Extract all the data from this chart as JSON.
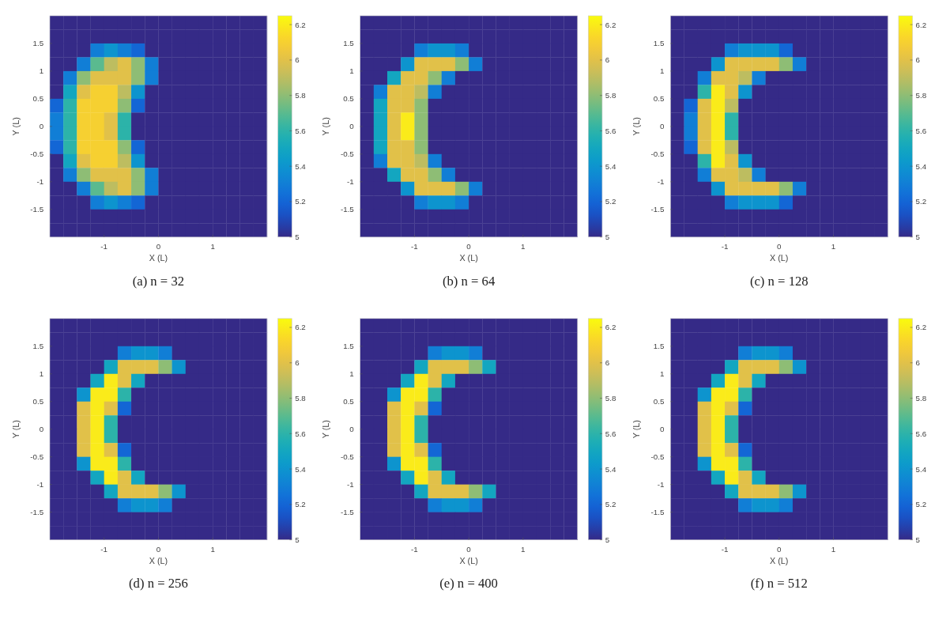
{
  "chart_data": [
    {
      "type": "heatmap",
      "title": "(a) n = 32",
      "xlabel": "X (L)",
      "ylabel": "Y (L)",
      "xlim": [
        -2,
        2
      ],
      "xticks": [
        -1,
        0,
        1
      ],
      "ylim": [
        -2,
        2
      ],
      "yticks": [
        -1.5,
        -1,
        -0.5,
        0,
        0.5,
        1,
        1.5
      ],
      "clim": [
        5,
        6.25
      ],
      "cticks": [
        5,
        5.2,
        5.4,
        5.6,
        5.8,
        6,
        6.2
      ],
      "cells": [
        [
          5,
          5,
          5,
          5,
          5,
          5,
          5,
          5,
          5,
          5,
          5,
          5,
          5,
          5,
          5,
          5
        ],
        [
          5,
          5,
          5,
          5,
          5,
          5,
          5,
          5,
          5,
          5,
          5,
          5,
          5,
          5,
          5,
          5
        ],
        [
          5,
          5,
          5,
          5.3,
          5.4,
          5.3,
          5.2,
          5,
          5,
          5,
          5,
          5,
          5,
          5,
          5,
          5
        ],
        [
          5,
          5,
          5.3,
          5.7,
          5.9,
          6,
          5.8,
          5.3,
          5,
          5,
          5,
          5,
          5,
          5,
          5,
          5
        ],
        [
          5,
          5.3,
          5.8,
          6,
          6,
          6,
          5.8,
          5.3,
          5,
          5,
          5,
          5,
          5,
          5,
          5,
          5
        ],
        [
          5,
          5.5,
          6,
          6.1,
          6.1,
          5.9,
          5.4,
          5,
          5,
          5,
          5,
          5,
          5,
          5,
          5,
          5
        ],
        [
          5.2,
          5.6,
          6.1,
          6.1,
          6.1,
          5.8,
          5.2,
          5,
          5,
          5,
          5,
          5,
          5,
          5,
          5,
          5
        ],
        [
          5.3,
          5.6,
          6.1,
          6.1,
          6,
          5.6,
          5,
          5,
          5,
          5,
          5,
          5,
          5,
          5,
          5,
          5
        ],
        [
          5.3,
          5.6,
          6.1,
          6.1,
          6,
          5.6,
          5,
          5,
          5,
          5,
          5,
          5,
          5,
          5,
          5,
          5
        ],
        [
          5.2,
          5.6,
          6.1,
          6.1,
          6.1,
          5.8,
          5.2,
          5,
          5,
          5,
          5,
          5,
          5,
          5,
          5,
          5
        ],
        [
          5,
          5.5,
          6,
          6.1,
          6.1,
          5.9,
          5.4,
          5,
          5,
          5,
          5,
          5,
          5,
          5,
          5,
          5
        ],
        [
          5,
          5.3,
          5.8,
          6,
          6,
          6,
          5.8,
          5.3,
          5,
          5,
          5,
          5,
          5,
          5,
          5,
          5
        ],
        [
          5,
          5,
          5.3,
          5.7,
          5.9,
          6,
          5.8,
          5.3,
          5,
          5,
          5,
          5,
          5,
          5,
          5,
          5
        ],
        [
          5,
          5,
          5,
          5.3,
          5.4,
          5.3,
          5.2,
          5,
          5,
          5,
          5,
          5,
          5,
          5,
          5,
          5
        ],
        [
          5,
          5,
          5,
          5,
          5,
          5,
          5,
          5,
          5,
          5,
          5,
          5,
          5,
          5,
          5,
          5
        ],
        [
          5,
          5,
          5,
          5,
          5,
          5,
          5,
          5,
          5,
          5,
          5,
          5,
          5,
          5,
          5,
          5
        ]
      ]
    },
    {
      "type": "heatmap",
      "title": "(b) n = 64",
      "xlabel": "X (L)",
      "ylabel": "Y (L)",
      "xlim": [
        -2,
        2
      ],
      "xticks": [
        -1,
        0,
        1
      ],
      "ylim": [
        -2,
        2
      ],
      "yticks": [
        -1.5,
        -1,
        -0.5,
        0,
        0.5,
        1,
        1.5
      ],
      "clim": [
        5,
        6.25
      ],
      "cticks": [
        5,
        5.2,
        5.4,
        5.6,
        5.8,
        6,
        6.2
      ],
      "cells": [
        [
          5,
          5,
          5,
          5,
          5,
          5,
          5,
          5,
          5,
          5,
          5,
          5,
          5,
          5,
          5,
          5
        ],
        [
          5,
          5,
          5,
          5,
          5,
          5,
          5,
          5,
          5,
          5,
          5,
          5,
          5,
          5,
          5,
          5
        ],
        [
          5,
          5,
          5,
          5,
          5.3,
          5.4,
          5.4,
          5.3,
          5,
          5,
          5,
          5,
          5,
          5,
          5,
          5
        ],
        [
          5,
          5,
          5,
          5.4,
          6,
          6,
          6,
          5.8,
          5.3,
          5,
          5,
          5,
          5,
          5,
          5,
          5
        ],
        [
          5,
          5,
          5.5,
          6,
          6,
          5.8,
          5.3,
          5,
          5,
          5,
          5,
          5,
          5,
          5,
          5,
          5
        ],
        [
          5,
          5.3,
          6,
          6,
          5.9,
          5.3,
          5,
          5,
          5,
          5,
          5,
          5,
          5,
          5,
          5,
          5
        ],
        [
          5,
          5.5,
          6,
          6,
          5.8,
          5,
          5,
          5,
          5,
          5,
          5,
          5,
          5,
          5,
          5,
          5
        ],
        [
          5,
          5.5,
          6,
          6.2,
          5.8,
          5,
          5,
          5,
          5,
          5,
          5,
          5,
          5,
          5,
          5,
          5
        ],
        [
          5,
          5.5,
          6,
          6.2,
          5.8,
          5,
          5,
          5,
          5,
          5,
          5,
          5,
          5,
          5,
          5,
          5
        ],
        [
          5,
          5.5,
          6,
          6,
          5.8,
          5,
          5,
          5,
          5,
          5,
          5,
          5,
          5,
          5,
          5,
          5
        ],
        [
          5,
          5.3,
          6,
          6,
          5.9,
          5.3,
          5,
          5,
          5,
          5,
          5,
          5,
          5,
          5,
          5,
          5
        ],
        [
          5,
          5,
          5.5,
          6,
          6,
          5.8,
          5.3,
          5,
          5,
          5,
          5,
          5,
          5,
          5,
          5,
          5
        ],
        [
          5,
          5,
          5,
          5.4,
          6,
          6,
          6,
          5.8,
          5.3,
          5,
          5,
          5,
          5,
          5,
          5,
          5
        ],
        [
          5,
          5,
          5,
          5,
          5.3,
          5.4,
          5.4,
          5.3,
          5,
          5,
          5,
          5,
          5,
          5,
          5,
          5
        ],
        [
          5,
          5,
          5,
          5,
          5,
          5,
          5,
          5,
          5,
          5,
          5,
          5,
          5,
          5,
          5,
          5
        ],
        [
          5,
          5,
          5,
          5,
          5,
          5,
          5,
          5,
          5,
          5,
          5,
          5,
          5,
          5,
          5,
          5
        ]
      ]
    },
    {
      "type": "heatmap",
      "title": "(c) n = 128",
      "xlabel": "X (L)",
      "ylabel": "Y (L)",
      "xlim": [
        -2,
        2
      ],
      "xticks": [
        -1,
        0,
        1
      ],
      "ylim": [
        -2,
        2
      ],
      "yticks": [
        -1.5,
        -1,
        -0.5,
        0,
        0.5,
        1,
        1.5
      ],
      "clim": [
        5,
        6.25
      ],
      "cticks": [
        5,
        5.2,
        5.4,
        5.6,
        5.8,
        6,
        6.2
      ],
      "cells": [
        [
          5,
          5,
          5,
          5,
          5,
          5,
          5,
          5,
          5,
          5,
          5,
          5,
          5,
          5,
          5,
          5
        ],
        [
          5,
          5,
          5,
          5,
          5,
          5,
          5,
          5,
          5,
          5,
          5,
          5,
          5,
          5,
          5,
          5
        ],
        [
          5,
          5,
          5,
          5,
          5.3,
          5.4,
          5.4,
          5.4,
          5.2,
          5,
          5,
          5,
          5,
          5,
          5,
          5
        ],
        [
          5,
          5,
          5,
          5.4,
          6,
          6,
          6,
          6,
          5.8,
          5.3,
          5,
          5,
          5,
          5,
          5,
          5
        ],
        [
          5,
          5,
          5.3,
          6,
          6,
          5.9,
          5.3,
          5,
          5,
          5,
          5,
          5,
          5,
          5,
          5,
          5
        ],
        [
          5,
          5,
          5.6,
          6.2,
          6,
          5.4,
          5,
          5,
          5,
          5,
          5,
          5,
          5,
          5,
          5,
          5
        ],
        [
          5,
          5.2,
          6,
          6.2,
          5.9,
          5,
          5,
          5,
          5,
          5,
          5,
          5,
          5,
          5,
          5,
          5
        ],
        [
          5,
          5.3,
          6,
          6.2,
          5.6,
          5,
          5,
          5,
          5,
          5,
          5,
          5,
          5,
          5,
          5,
          5
        ],
        [
          5,
          5.3,
          6,
          6.2,
          5.6,
          5,
          5,
          5,
          5,
          5,
          5,
          5,
          5,
          5,
          5,
          5
        ],
        [
          5,
          5.2,
          6,
          6.2,
          5.9,
          5,
          5,
          5,
          5,
          5,
          5,
          5,
          5,
          5,
          5,
          5
        ],
        [
          5,
          5,
          5.6,
          6.2,
          6,
          5.4,
          5,
          5,
          5,
          5,
          5,
          5,
          5,
          5,
          5,
          5
        ],
        [
          5,
          5,
          5.3,
          6,
          6,
          5.9,
          5.3,
          5,
          5,
          5,
          5,
          5,
          5,
          5,
          5,
          5
        ],
        [
          5,
          5,
          5,
          5.4,
          6,
          6,
          6,
          6,
          5.8,
          5.3,
          5,
          5,
          5,
          5,
          5,
          5
        ],
        [
          5,
          5,
          5,
          5,
          5.3,
          5.4,
          5.4,
          5.4,
          5.2,
          5,
          5,
          5,
          5,
          5,
          5,
          5
        ],
        [
          5,
          5,
          5,
          5,
          5,
          5,
          5,
          5,
          5,
          5,
          5,
          5,
          5,
          5,
          5,
          5
        ],
        [
          5,
          5,
          5,
          5,
          5,
          5,
          5,
          5,
          5,
          5,
          5,
          5,
          5,
          5,
          5,
          5
        ]
      ]
    },
    {
      "type": "heatmap",
      "title": "(d) n = 256",
      "xlabel": "X (L)",
      "ylabel": "Y (L)",
      "xlim": [
        -2,
        2
      ],
      "xticks": [
        -1,
        0,
        1
      ],
      "ylim": [
        -2,
        2
      ],
      "yticks": [
        -1.5,
        -1,
        -0.5,
        0,
        0.5,
        1,
        1.5
      ],
      "clim": [
        5,
        6.25
      ],
      "cticks": [
        5,
        5.2,
        5.4,
        5.6,
        5.8,
        6,
        6.2
      ],
      "cells": [
        [
          5,
          5,
          5,
          5,
          5,
          5,
          5,
          5,
          5,
          5,
          5,
          5,
          5,
          5,
          5,
          5
        ],
        [
          5,
          5,
          5,
          5,
          5,
          5,
          5,
          5,
          5,
          5,
          5,
          5,
          5,
          5,
          5,
          5
        ],
        [
          5,
          5,
          5,
          5,
          5,
          5.3,
          5.4,
          5.4,
          5.3,
          5,
          5,
          5,
          5,
          5,
          5,
          5
        ],
        [
          5,
          5,
          5,
          5,
          5.5,
          6,
          6,
          6,
          5.8,
          5.4,
          5,
          5,
          5,
          5,
          5,
          5
        ],
        [
          5,
          5,
          5,
          5.5,
          6.2,
          6,
          5.5,
          5,
          5,
          5,
          5,
          5,
          5,
          5,
          5,
          5
        ],
        [
          5,
          5,
          5.4,
          6.2,
          6.2,
          5.6,
          5,
          5,
          5,
          5,
          5,
          5,
          5,
          5,
          5,
          5
        ],
        [
          5,
          5,
          6,
          6.2,
          6,
          5.2,
          5,
          5,
          5,
          5,
          5,
          5,
          5,
          5,
          5,
          5
        ],
        [
          5,
          5,
          6,
          6.2,
          5.6,
          5,
          5,
          5,
          5,
          5,
          5,
          5,
          5,
          5,
          5,
          5
        ],
        [
          5,
          5,
          6,
          6.2,
          5.6,
          5,
          5,
          5,
          5,
          5,
          5,
          5,
          5,
          5,
          5,
          5
        ],
        [
          5,
          5,
          6,
          6.2,
          6,
          5.2,
          5,
          5,
          5,
          5,
          5,
          5,
          5,
          5,
          5,
          5
        ],
        [
          5,
          5,
          5.4,
          6.2,
          6.2,
          5.6,
          5,
          5,
          5,
          5,
          5,
          5,
          5,
          5,
          5,
          5
        ],
        [
          5,
          5,
          5,
          5.5,
          6.2,
          6,
          5.5,
          5,
          5,
          5,
          5,
          5,
          5,
          5,
          5,
          5
        ],
        [
          5,
          5,
          5,
          5,
          5.5,
          6,
          6,
          6,
          5.8,
          5.4,
          5,
          5,
          5,
          5,
          5,
          5
        ],
        [
          5,
          5,
          5,
          5,
          5,
          5.3,
          5.4,
          5.4,
          5.3,
          5,
          5,
          5,
          5,
          5,
          5,
          5
        ],
        [
          5,
          5,
          5,
          5,
          5,
          5,
          5,
          5,
          5,
          5,
          5,
          5,
          5,
          5,
          5,
          5
        ],
        [
          5,
          5,
          5,
          5,
          5,
          5,
          5,
          5,
          5,
          5,
          5,
          5,
          5,
          5,
          5,
          5
        ]
      ]
    },
    {
      "type": "heatmap",
      "title": "(e) n = 400",
      "xlabel": "X (L)",
      "ylabel": "Y (L)",
      "xlim": [
        -2,
        2
      ],
      "xticks": [
        -1,
        0,
        1
      ],
      "ylim": [
        -2,
        2
      ],
      "yticks": [
        -1.5,
        -1,
        -0.5,
        0,
        0.5,
        1,
        1.5
      ],
      "clim": [
        5,
        6.25
      ],
      "cticks": [
        5,
        5.2,
        5.4,
        5.6,
        5.8,
        6,
        6.2
      ],
      "cells": [
        [
          5,
          5,
          5,
          5,
          5,
          5,
          5,
          5,
          5,
          5,
          5,
          5,
          5,
          5,
          5,
          5
        ],
        [
          5,
          5,
          5,
          5,
          5,
          5,
          5,
          5,
          5,
          5,
          5,
          5,
          5,
          5,
          5,
          5
        ],
        [
          5,
          5,
          5,
          5,
          5,
          5.3,
          5.4,
          5.4,
          5.3,
          5,
          5,
          5,
          5,
          5,
          5,
          5
        ],
        [
          5,
          5,
          5,
          5,
          5.5,
          6,
          6,
          6,
          5.8,
          5.5,
          5,
          5,
          5,
          5,
          5,
          5
        ],
        [
          5,
          5,
          5,
          5.5,
          6.2,
          6,
          5.5,
          5,
          5,
          5,
          5,
          5,
          5,
          5,
          5,
          5
        ],
        [
          5,
          5,
          5.4,
          6.2,
          6.2,
          5.6,
          5,
          5,
          5,
          5,
          5,
          5,
          5,
          5,
          5,
          5
        ],
        [
          5,
          5,
          6,
          6.2,
          6,
          5.2,
          5,
          5,
          5,
          5,
          5,
          5,
          5,
          5,
          5,
          5
        ],
        [
          5,
          5,
          6,
          6.2,
          5.6,
          5,
          5,
          5,
          5,
          5,
          5,
          5,
          5,
          5,
          5,
          5
        ],
        [
          5,
          5,
          6,
          6.2,
          5.6,
          5,
          5,
          5,
          5,
          5,
          5,
          5,
          5,
          5,
          5,
          5
        ],
        [
          5,
          5,
          6,
          6.2,
          6,
          5.2,
          5,
          5,
          5,
          5,
          5,
          5,
          5,
          5,
          5,
          5
        ],
        [
          5,
          5,
          5.4,
          6.2,
          6.2,
          5.6,
          5,
          5,
          5,
          5,
          5,
          5,
          5,
          5,
          5,
          5
        ],
        [
          5,
          5,
          5,
          5.5,
          6.2,
          6,
          5.5,
          5,
          5,
          5,
          5,
          5,
          5,
          5,
          5,
          5
        ],
        [
          5,
          5,
          5,
          5,
          5.5,
          6,
          6,
          6,
          5.8,
          5.5,
          5,
          5,
          5,
          5,
          5,
          5
        ],
        [
          5,
          5,
          5,
          5,
          5,
          5.3,
          5.4,
          5.4,
          5.3,
          5,
          5,
          5,
          5,
          5,
          5,
          5
        ],
        [
          5,
          5,
          5,
          5,
          5,
          5,
          5,
          5,
          5,
          5,
          5,
          5,
          5,
          5,
          5,
          5
        ],
        [
          5,
          5,
          5,
          5,
          5,
          5,
          5,
          5,
          5,
          5,
          5,
          5,
          5,
          5,
          5,
          5
        ]
      ]
    },
    {
      "type": "heatmap",
      "title": "(f) n = 512",
      "xlabel": "X (L)",
      "ylabel": "Y (L)",
      "xlim": [
        -2,
        2
      ],
      "xticks": [
        -1,
        0,
        1
      ],
      "ylim": [
        -2,
        2
      ],
      "yticks": [
        -1.5,
        -1,
        -0.5,
        0,
        0.5,
        1,
        1.5
      ],
      "clim": [
        5,
        6.25
      ],
      "cticks": [
        5,
        5.2,
        5.4,
        5.6,
        5.8,
        6,
        6.2
      ],
      "cells": [
        [
          5,
          5,
          5,
          5,
          5,
          5,
          5,
          5,
          5,
          5,
          5,
          5,
          5,
          5,
          5,
          5
        ],
        [
          5,
          5,
          5,
          5,
          5,
          5,
          5,
          5,
          5,
          5,
          5,
          5,
          5,
          5,
          5,
          5
        ],
        [
          5,
          5,
          5,
          5,
          5,
          5.3,
          5.4,
          5.4,
          5.3,
          5,
          5,
          5,
          5,
          5,
          5,
          5
        ],
        [
          5,
          5,
          5,
          5,
          5.5,
          6,
          6,
          6,
          5.8,
          5.4,
          5,
          5,
          5,
          5,
          5,
          5
        ],
        [
          5,
          5,
          5,
          5.5,
          6.2,
          6,
          5.5,
          5,
          5,
          5,
          5,
          5,
          5,
          5,
          5,
          5
        ],
        [
          5,
          5,
          5.4,
          6.2,
          6.2,
          5.6,
          5,
          5,
          5,
          5,
          5,
          5,
          5,
          5,
          5,
          5
        ],
        [
          5,
          5,
          6,
          6.2,
          6,
          5.2,
          5,
          5,
          5,
          5,
          5,
          5,
          5,
          5,
          5,
          5
        ],
        [
          5,
          5,
          6,
          6.2,
          5.6,
          5,
          5,
          5,
          5,
          5,
          5,
          5,
          5,
          5,
          5,
          5
        ],
        [
          5,
          5,
          6,
          6.2,
          5.6,
          5,
          5,
          5,
          5,
          5,
          5,
          5,
          5,
          5,
          5,
          5
        ],
        [
          5,
          5,
          6,
          6.2,
          6,
          5.2,
          5,
          5,
          5,
          5,
          5,
          5,
          5,
          5,
          5,
          5
        ],
        [
          5,
          5,
          5.4,
          6.2,
          6.2,
          5.6,
          5,
          5,
          5,
          5,
          5,
          5,
          5,
          5,
          5,
          5
        ],
        [
          5,
          5,
          5,
          5.5,
          6.2,
          6,
          5.5,
          5,
          5,
          5,
          5,
          5,
          5,
          5,
          5,
          5
        ],
        [
          5,
          5,
          5,
          5,
          5.5,
          6,
          6,
          6,
          5.8,
          5.4,
          5,
          5,
          5,
          5,
          5,
          5
        ],
        [
          5,
          5,
          5,
          5,
          5,
          5.3,
          5.4,
          5.4,
          5.3,
          5,
          5,
          5,
          5,
          5,
          5,
          5
        ],
        [
          5,
          5,
          5,
          5,
          5,
          5,
          5,
          5,
          5,
          5,
          5,
          5,
          5,
          5,
          5,
          5
        ],
        [
          5,
          5,
          5,
          5,
          5,
          5,
          5,
          5,
          5,
          5,
          5,
          5,
          5,
          5,
          5,
          5
        ]
      ]
    }
  ]
}
